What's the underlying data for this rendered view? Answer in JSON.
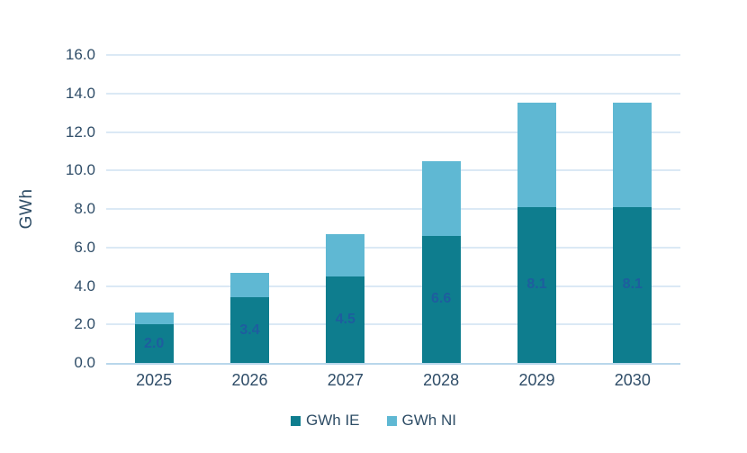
{
  "chart_data": {
    "type": "bar",
    "stacked": true,
    "title": "",
    "categories": [
      "2025",
      "2026",
      "2027",
      "2028",
      "2029",
      "2030"
    ],
    "series": [
      {
        "name": "GWh IE",
        "color": "#0e7d8e",
        "values": [
          2.0,
          3.4,
          4.5,
          6.6,
          8.1,
          8.1
        ],
        "labels": [
          "2.0",
          "3.4",
          "4.5",
          "6.6",
          "8.1",
          "8.1"
        ],
        "label_color": "#1e5d9f"
      },
      {
        "name": "GWh NI",
        "color": "#5fb8d3",
        "values": [
          0.6,
          1.3,
          2.2,
          3.9,
          5.4,
          5.4
        ]
      }
    ],
    "totals": [
      2.6,
      4.7,
      6.7,
      10.5,
      13.5,
      13.5
    ],
    "xlabel": "",
    "ylabel": "GWh",
    "ylim": [
      0,
      16
    ],
    "ytick_step": 2,
    "yticks": [
      "16.0",
      "14.0",
      "12.0",
      "10.0",
      "8.0",
      "6.0",
      "4.0",
      "2.0",
      "0.0"
    ],
    "grid": true,
    "gridline_color": "#dbe9f5",
    "axis_text_color": "#2f4d68",
    "legend_position": "bottom"
  }
}
